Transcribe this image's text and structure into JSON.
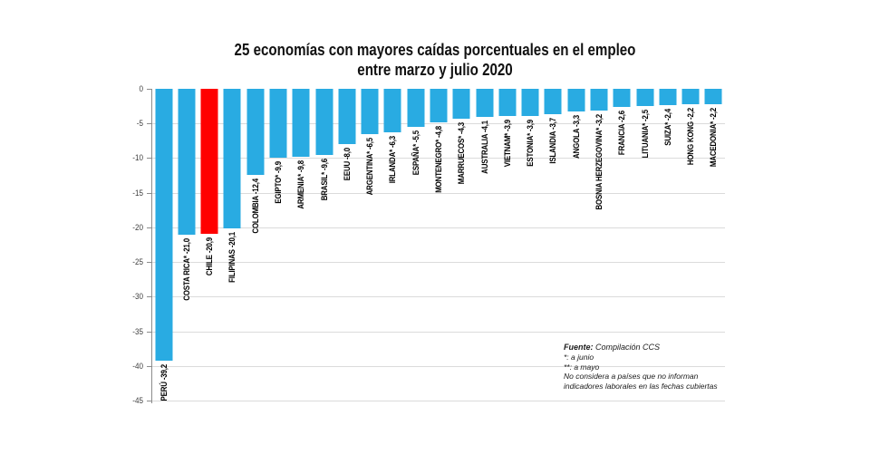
{
  "title": {
    "line1": "25 economías con mayores caídas porcentuales en el empleo",
    "line2": "entre marzo y julio 2020"
  },
  "colors": {
    "bar_default": "#29ABE2",
    "bar_highlight": "#FF0000",
    "gridline": "#DBDBDB",
    "axis": "#8C8C8C",
    "tick_text": "#3D3D3D",
    "label_text": "#000000"
  },
  "chart_data": {
    "type": "bar",
    "orientation": "vertical-negative",
    "title": "25 economías con mayores caídas porcentuales en el empleo entre marzo y julio 2020",
    "xlabel": "",
    "ylabel": "",
    "ylim": [
      -45,
      0
    ],
    "yticks": [
      0,
      -5,
      -10,
      -15,
      -20,
      -25,
      -30,
      -35,
      -40,
      -45
    ],
    "grid": true,
    "legend": false,
    "highlight_index": 2,
    "bars": [
      {
        "name": "PERÚ",
        "value": -39.2,
        "label": "PERÚ -39,2",
        "color": "#29ABE2"
      },
      {
        "name": "COSTA RICA*",
        "value": -21.0,
        "label": "COSTA RICA* -21,0",
        "color": "#29ABE2"
      },
      {
        "name": "CHILE",
        "value": -20.9,
        "label": "CHILE -20,9",
        "color": "#FF0000"
      },
      {
        "name": "FILIPINAS",
        "value": -20.1,
        "label": "FILIPINAS -20,1",
        "color": "#29ABE2"
      },
      {
        "name": "COLOMBIA",
        "value": -12.4,
        "label": "COLOMBIA -12,4",
        "color": "#29ABE2"
      },
      {
        "name": "EGIPTO*",
        "value": -9.9,
        "label": "EGIPTO* -9,9",
        "color": "#29ABE2"
      },
      {
        "name": "ARMENIA*",
        "value": -9.8,
        "label": "ARMENIA* -9,8",
        "color": "#29ABE2"
      },
      {
        "name": "BRASIL*",
        "value": -9.6,
        "label": "BRASIL* -9,6",
        "color": "#29ABE2"
      },
      {
        "name": "EEUU",
        "value": -8.0,
        "label": "EEUU -8,0",
        "color": "#29ABE2"
      },
      {
        "name": "ARGENTINA*",
        "value": -6.5,
        "label": "ARGENTINA* -6,5",
        "color": "#29ABE2"
      },
      {
        "name": "IRLANDA*",
        "value": -6.3,
        "label": "IRLANDA* -6,3",
        "color": "#29ABE2"
      },
      {
        "name": "ESPAÑA*",
        "value": -5.5,
        "label": "ESPAÑA* -5,5",
        "color": "#29ABE2"
      },
      {
        "name": "MONTENEGRO*",
        "value": -4.8,
        "label": "MONTENEGRO* -4,8",
        "color": "#29ABE2"
      },
      {
        "name": "MARRUECOS*",
        "value": -4.3,
        "label": "MARRUECOS* -4,3",
        "color": "#29ABE2"
      },
      {
        "name": "AUSTRALIA",
        "value": -4.1,
        "label": "AUSTRALIA -4,1",
        "color": "#29ABE2"
      },
      {
        "name": "VIETNAM*",
        "value": -3.9,
        "label": "VIETNAM* -3,9",
        "color": "#29ABE2"
      },
      {
        "name": "ESTONIA*",
        "value": -3.9,
        "label": "ESTONIA* -3,9",
        "color": "#29ABE2"
      },
      {
        "name": "ISLANDIA",
        "value": -3.7,
        "label": "ISLANDIA -3,7",
        "color": "#29ABE2"
      },
      {
        "name": "ANGOLA",
        "value": -3.3,
        "label": "ANGOLA -3,3",
        "color": "#29ABE2"
      },
      {
        "name": "BOSNIA HERZEGOVINA*",
        "value": -3.2,
        "label": "BOSNIA HERZEGOVINA* -3,2",
        "color": "#29ABE2"
      },
      {
        "name": "FRANCIA",
        "value": -2.6,
        "label": "FRANCIA -2,6",
        "color": "#29ABE2"
      },
      {
        "name": "LITUANIA*",
        "value": -2.5,
        "label": "LITUANIA* -2,5",
        "color": "#29ABE2"
      },
      {
        "name": "SUIZA*",
        "value": -2.4,
        "label": "SUIZA* -2,4",
        "color": "#29ABE2"
      },
      {
        "name": "HONG KONG",
        "value": -2.2,
        "label": "HONG KONG -2,2",
        "color": "#29ABE2"
      },
      {
        "name": "MACEDONIA*",
        "value": -2.2,
        "label": "MACEDONIA* -2,2",
        "color": "#29ABE2"
      }
    ]
  },
  "footnote": {
    "source_label": "Fuente:",
    "source_text": "Compilación  CCS",
    "notes": [
      "*: a junio",
      "**: a mayo",
      "No considera a países que no informan",
      "indicadores laborales en las fechas cubiertas"
    ]
  }
}
